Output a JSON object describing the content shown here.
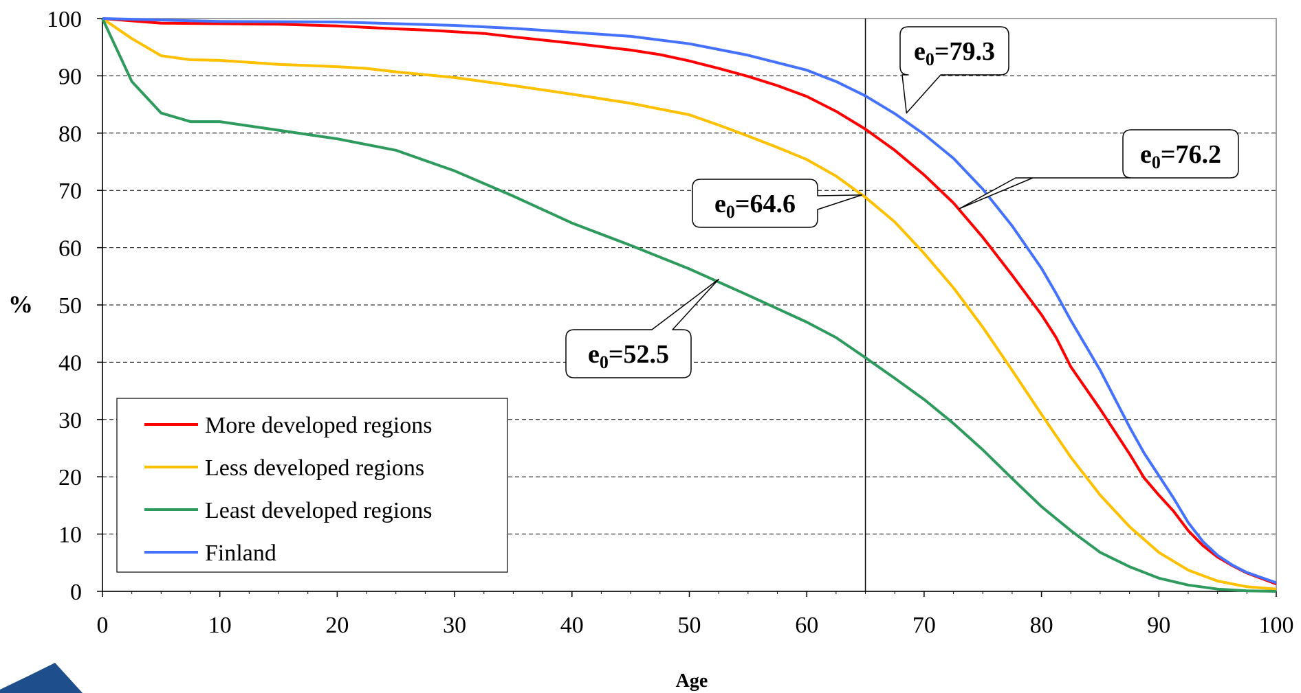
{
  "chart_data": {
    "type": "line",
    "title": "",
    "xlabel": "Age",
    "ylabel": "%",
    "xlim": [
      0,
      100
    ],
    "ylim": [
      0,
      100
    ],
    "x_ticks": [
      0,
      10,
      20,
      30,
      40,
      50,
      60,
      70,
      80,
      90,
      100
    ],
    "y_ticks": [
      0,
      10,
      20,
      30,
      40,
      50,
      60,
      70,
      80,
      90,
      100
    ],
    "grid": "horizontal dashed",
    "legend_position": "bottom-left",
    "reference_line_x": 65,
    "series": [
      {
        "name": "More developed regions",
        "color": "#ff0000",
        "x": [
          0,
          5,
          10,
          15,
          20,
          25,
          27.5,
          30,
          32.5,
          35,
          40,
          45,
          47.5,
          50,
          52.5,
          55,
          57.5,
          60,
          62.5,
          65,
          67.5,
          70,
          72.5,
          75,
          77.5,
          80,
          81.25,
          82.5,
          85,
          87.5,
          88.75,
          90,
          91.25,
          92.5,
          93.75,
          95,
          96.25,
          97.5,
          100
        ],
        "y": [
          100,
          99.2,
          99.1,
          99,
          98.7,
          98.2,
          98,
          97.7,
          97.4,
          96.8,
          95.7,
          94.5,
          93.7,
          92.6,
          91.3,
          89.9,
          88.3,
          86.4,
          83.8,
          80.7,
          77,
          72.7,
          67.8,
          61.8,
          55.2,
          48.3,
          44.3,
          39.2,
          31.8,
          24,
          19.8,
          16.8,
          14,
          10.6,
          8,
          6,
          4.5,
          3.2,
          1.3
        ]
      },
      {
        "name": "Less developed regions",
        "color": "#ffc000",
        "x": [
          0,
          2.5,
          5,
          7.5,
          10,
          15,
          17.5,
          20,
          22.5,
          25,
          30,
          35,
          40,
          45,
          50,
          52.5,
          55,
          57.5,
          60,
          62.5,
          65,
          67.5,
          70,
          72.5,
          75,
          77.5,
          80,
          82.5,
          85,
          87.5,
          90,
          92.5,
          95,
          97.5,
          100
        ],
        "y": [
          100,
          96.5,
          93.5,
          92.8,
          92.7,
          92,
          91.8,
          91.6,
          91.3,
          90.7,
          89.7,
          88.3,
          86.8,
          85.2,
          83.2,
          81.4,
          79.5,
          77.5,
          75.4,
          72.5,
          68.8,
          64.5,
          59,
          53,
          46.1,
          38.6,
          30.9,
          23.4,
          16.8,
          11.3,
          6.8,
          3.7,
          1.8,
          0.8,
          0.4
        ]
      },
      {
        "name": "Least developed regions",
        "color": "#2e9a5e",
        "x": [
          0,
          2.5,
          5,
          7.5,
          10,
          15,
          20,
          25,
          30,
          35,
          40,
          45,
          50,
          55,
          60,
          62.5,
          65,
          67.5,
          70,
          72.5,
          75,
          77.5,
          80,
          82.5,
          85,
          87.5,
          90,
          92.5,
          95,
          97.5,
          100
        ],
        "y": [
          100,
          89,
          83.5,
          82,
          82,
          80.5,
          79,
          77,
          73.4,
          69,
          64.3,
          60.4,
          56.3,
          51.7,
          47,
          44.3,
          40.8,
          37.2,
          33.5,
          29.3,
          24.7,
          19.7,
          14.8,
          10.6,
          6.8,
          4.3,
          2.3,
          1.1,
          0.4,
          0.1,
          0
        ]
      },
      {
        "name": "Finland",
        "color": "#4472ff",
        "x": [
          0,
          10,
          20,
          25,
          30,
          35,
          40,
          45,
          50,
          55,
          60,
          62.5,
          65,
          67.5,
          70,
          72.5,
          75,
          77.5,
          80,
          81.25,
          82.5,
          85,
          87.5,
          88.75,
          90,
          91.25,
          92.5,
          93.75,
          95,
          96.25,
          97.5,
          100
        ],
        "y": [
          100,
          99.5,
          99.4,
          99.1,
          98.8,
          98.3,
          97.6,
          96.9,
          95.6,
          93.6,
          91,
          89,
          86.5,
          83.4,
          79.8,
          75.6,
          70.2,
          63.8,
          56.4,
          52,
          47.3,
          38.6,
          28.7,
          24.1,
          20.2,
          16.3,
          12,
          8.7,
          6.3,
          4.6,
          3.3,
          1.5
        ]
      }
    ],
    "annotations": [
      {
        "prefix": "e",
        "subscript": "0",
        "text": "=79.3",
        "target": {
          "x": 68.5,
          "y": 83.5
        }
      },
      {
        "prefix": "e",
        "subscript": "0",
        "text": "=76.2",
        "target": {
          "x": 73,
          "y": 66.8
        }
      },
      {
        "prefix": "e",
        "subscript": "0",
        "text": "=64.6",
        "target": {
          "x": 64.7,
          "y": 69.2
        }
      },
      {
        "prefix": "e",
        "subscript": "0",
        "text": "=52.5",
        "target": {
          "x": 52.5,
          "y": 54.5
        }
      }
    ]
  }
}
